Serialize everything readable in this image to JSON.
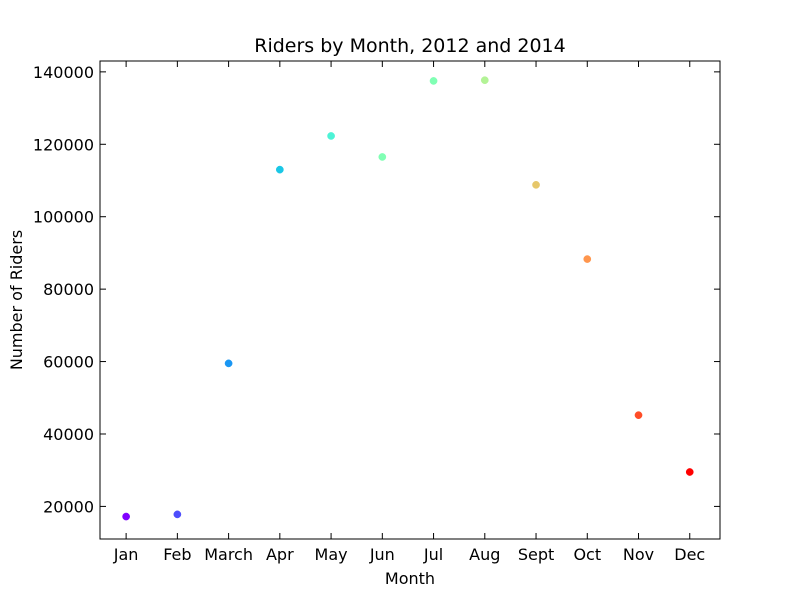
{
  "chart_data": {
    "type": "scatter",
    "title": "Riders by Month, 2012 and 2014",
    "xlabel": "Month",
    "ylabel": "Number of Riders",
    "categories": [
      "Jan",
      "Feb",
      "March",
      "Apr",
      "May",
      "Jun",
      "Jul",
      "Aug",
      "Sept",
      "Oct",
      "Nov",
      "Dec"
    ],
    "values": [
      17200,
      17800,
      59500,
      113000,
      122300,
      116500,
      137500,
      137700,
      108800,
      88300,
      45200,
      29500
    ],
    "point_colors": [
      "#8000ff",
      "#4d4dfc",
      "#1996f3",
      "#1ac7e6",
      "#4df3d6",
      "#80ffb4",
      "#80ffb4",
      "#b3f396",
      "#e6c76a",
      "#ff964d",
      "#ff4d27",
      "#ff0000"
    ],
    "ylim": [
      11000,
      143000
    ],
    "yticks": [
      20000,
      40000,
      60000,
      80000,
      100000,
      120000,
      140000
    ],
    "grid": false,
    "legend": "none"
  }
}
